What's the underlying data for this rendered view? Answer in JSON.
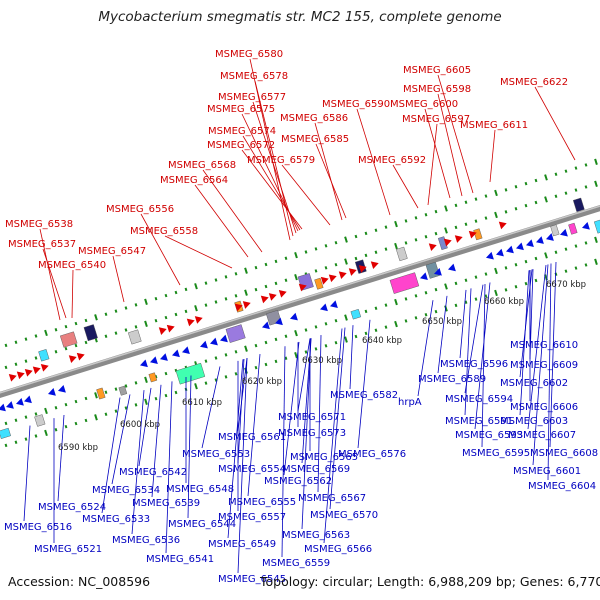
{
  "title": "Mycobacterium smegmatis str. MC2 155, complete genome",
  "footer": {
    "accession": "Accession: NC_008596",
    "summary": "Topology: circular; Length: 6,988,209 bp; Genes: 6,770"
  },
  "colors": {
    "forward": "#e00000",
    "reverse": "#0010e0",
    "backbone": "#8c8c8c",
    "tick": "#1a8a1a"
  },
  "scale_labels": [
    "6590 kbp",
    "6600 kbp",
    "6610 kbp",
    "6620 kbp",
    "6630 kbp",
    "6640 kbp",
    "6650 kbp",
    "6660 kbp",
    "6670 kbp"
  ],
  "forward_genes": [
    "MSMEG_6580",
    "MSMEG_6578",
    "MSMEG_6577",
    "MSMEG_6575",
    "MSMEG_6574",
    "MSMEG_6572",
    "MSMEG_6586",
    "MSMEG_6585",
    "MSMEG_6579",
    "MSMEG_6568",
    "MSMEG_6564",
    "MSMEG_6556",
    "MSMEG_6558",
    "MSMEG_6538",
    "MSMEG_6537",
    "MSMEG_6547",
    "MSMEG_6540",
    "MSMEG_6605",
    "MSMEG_6598",
    "MSMEG_6590",
    "MSMEG_6600",
    "MSMEG_6597",
    "MSMEG_6592",
    "MSMEG_6622",
    "MSMEG_6611"
  ],
  "reverse_genes": [
    "MSMEG_6610",
    "MSMEG_6609",
    "MSMEG_6596",
    "MSMEG_6589",
    "MSMEG_6602",
    "hrpA",
    "MSMEG_6594",
    "MSMEG_6606",
    "MSMEG_6582",
    "MSMEG_6591",
    "MSMEG_6603",
    "MSMEG_6571",
    "MSMEG_6593",
    "MSMEG_6607",
    "MSMEG_6573",
    "MSMEG_6595",
    "MSMEG_6608",
    "MSMEG_6561",
    "MSMEG_6576",
    "MSMEG_6601",
    "MSMEG_6553",
    "MSMEG_6565",
    "MSMEG_6604",
    "MSMEG_6554",
    "MSMEG_6569",
    "MSMEG_6542",
    "MSMEG_6562",
    "MSMEG_6534",
    "MSMEG_6548",
    "MSMEG_6567",
    "MSMEG_6524",
    "MSMEG_6539",
    "MSMEG_6555",
    "MSMEG_6570",
    "MSMEG_6533",
    "MSMEG_6557",
    "MSMEG_6544",
    "MSMEG_6516",
    "MSMEG_6563",
    "MSMEG_6536",
    "MSMEG_6549",
    "MSMEG_6566",
    "MSMEG_6521",
    "MSMEG_6559",
    "MSMEG_6541",
    "MSMEG_6545"
  ]
}
